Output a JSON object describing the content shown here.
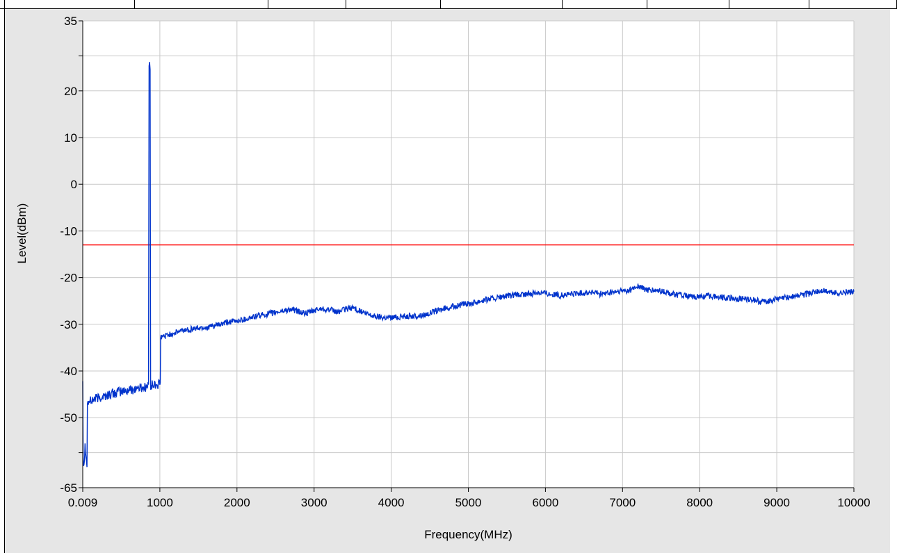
{
  "chart_data": {
    "type": "line",
    "title": "",
    "xlabel": "Frequency(MHz)",
    "ylabel": "Level(dBm)",
    "xlim": [
      0.009,
      10000
    ],
    "ylim": [
      -65,
      35
    ],
    "x_tick_labels": [
      "0.009",
      "1000",
      "2000",
      "3000",
      "4000",
      "5000",
      "6000",
      "7000",
      "8000",
      "9000",
      "10000"
    ],
    "x_ticks": [
      0.009,
      1000,
      2000,
      3000,
      4000,
      5000,
      6000,
      7000,
      8000,
      9000,
      10000
    ],
    "y_tick_labels": [
      "35",
      "20",
      "10",
      "0",
      "-10",
      "-20",
      "-30",
      "-40",
      "-50",
      "-65"
    ],
    "y_ticks": [
      35,
      20,
      10,
      0,
      -10,
      -20,
      -30,
      -40,
      -50,
      -65
    ],
    "y_unlabeled_ticks": [
      27.5,
      -57.5
    ],
    "grid": true,
    "colors": {
      "spectrum": "#0033cc",
      "limit": "#ff0000",
      "plot_bg": "#ffffff",
      "panel_bg": "#e6e6e6",
      "grid": "#c8c8c8"
    },
    "series": [
      {
        "x": [
          0.009,
          5,
          10,
          20,
          30,
          40,
          50,
          60,
          80,
          100,
          150,
          200,
          250,
          300,
          350,
          400,
          450,
          500,
          550,
          600,
          650,
          700,
          750,
          800,
          840,
          860,
          880,
          900,
          950,
          1000,
          1010,
          1100,
          1200,
          1300,
          1400,
          1500,
          1600,
          1700,
          1800,
          1900,
          2000,
          2100,
          2200,
          2300,
          2400,
          2500,
          2600,
          2700,
          2800,
          2900,
          3000,
          3100,
          3200,
          3300,
          3400,
          3500,
          3600,
          3700,
          3800,
          3900,
          4000,
          4100,
          4200,
          4300,
          4400,
          4500,
          4600,
          4700,
          4800,
          4900,
          5000,
          5100,
          5200,
          5300,
          5400,
          5500,
          5600,
          5700,
          5800,
          5900,
          6000,
          6100,
          6200,
          6300,
          6400,
          6500,
          6600,
          6700,
          6800,
          6900,
          7000,
          7100,
          7200,
          7300,
          7400,
          7500,
          7600,
          7700,
          7800,
          7900,
          8000,
          8100,
          8200,
          8300,
          8400,
          8500,
          8600,
          8700,
          8800,
          8900,
          9000,
          9100,
          9200,
          9300,
          9400,
          9500,
          9600,
          9700,
          9800,
          9900,
          10000
        ],
        "y": [
          -42,
          -58,
          -60,
          -59,
          -56,
          -57,
          -60,
          -47,
          -46.5,
          -46.5,
          -46,
          -45.8,
          -45.5,
          -45.3,
          -45,
          -44.8,
          -44.6,
          -44.4,
          -44.3,
          -44.1,
          -43.9,
          -43.7,
          -43.6,
          -43.5,
          -43.3,
          25.5,
          -43.2,
          -43.1,
          -43,
          -42.9,
          -32.8,
          -32.3,
          -31.8,
          -31.3,
          -31,
          -30.8,
          -30.7,
          -30.4,
          -30,
          -29.5,
          -29.3,
          -28.9,
          -28.5,
          -28.1,
          -27.8,
          -27.5,
          -27.1,
          -26.8,
          -27.3,
          -27.7,
          -27.1,
          -26.6,
          -26.9,
          -27.4,
          -26.8,
          -26.4,
          -27.2,
          -27.9,
          -28.3,
          -28.5,
          -28.5,
          -28.4,
          -28.2,
          -28.3,
          -28.1,
          -27.6,
          -27.1,
          -26.6,
          -26.2,
          -25.9,
          -25.6,
          -25.2,
          -24.8,
          -24.5,
          -24.3,
          -24,
          -23.8,
          -23.7,
          -23.5,
          -23.1,
          -23.3,
          -23.6,
          -23.8,
          -23.6,
          -23.4,
          -23.3,
          -23.1,
          -23.5,
          -23.4,
          -23.1,
          -22.9,
          -22.7,
          -21.8,
          -22.6,
          -22.8,
          -22.9,
          -23.3,
          -23.6,
          -23.9,
          -24.2,
          -24.1,
          -23.9,
          -24,
          -24.2,
          -24.4,
          -24.6,
          -24.5,
          -24.8,
          -25.2,
          -24.9,
          -24.6,
          -24.3,
          -24,
          -23.8,
          -23.5,
          -23.1,
          -22.8,
          -23.1,
          -23.3,
          -23.1,
          -23
        ]
      }
    ],
    "limit_line": -13
  }
}
